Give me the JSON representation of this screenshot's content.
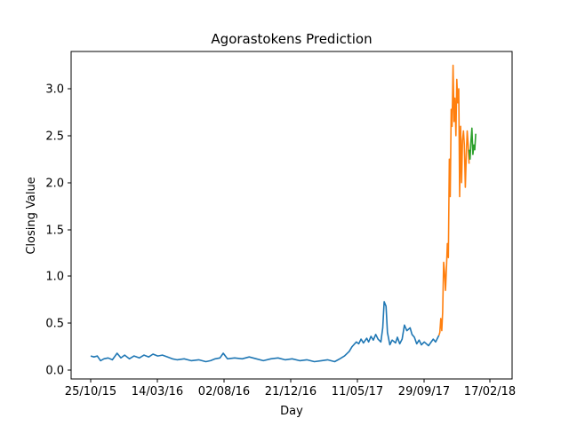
{
  "chart_data": {
    "type": "line",
    "title": "Agorastokens Prediction",
    "xlabel": "Day",
    "ylabel": "Closing Value",
    "x_ticks": [
      "25/10/15",
      "14/03/16",
      "02/08/16",
      "21/12/16",
      "11/05/17",
      "29/09/17",
      "17/02/18"
    ],
    "y_ticks": [
      "0.0",
      "0.5",
      "1.0",
      "1.5",
      "2.0",
      "2.5",
      "3.0"
    ],
    "xlim": [
      "2015-09-21",
      "2018-03-28"
    ],
    "ylim": [
      -0.08,
      3.38
    ],
    "grid": false,
    "legend": "none",
    "colors": {
      "series_1": "#1f77b4",
      "series_2": "#ff7f0e",
      "series_3": "#2ca02c"
    },
    "series": [
      {
        "color": "#1f77b4",
        "points": [
          [
            "2015-10-25",
            0.15
          ],
          [
            "2015-11-01",
            0.14
          ],
          [
            "2015-11-08",
            0.15
          ],
          [
            "2015-11-15",
            0.1
          ],
          [
            "2015-11-22",
            0.12
          ],
          [
            "2015-12-01",
            0.13
          ],
          [
            "2015-12-10",
            0.11
          ],
          [
            "2015-12-20",
            0.18
          ],
          [
            "2015-12-28",
            0.13
          ],
          [
            "2016-01-05",
            0.16
          ],
          [
            "2016-01-15",
            0.12
          ],
          [
            "2016-01-25",
            0.15
          ],
          [
            "2016-02-05",
            0.13
          ],
          [
            "2016-02-15",
            0.16
          ],
          [
            "2016-02-25",
            0.14
          ],
          [
            "2016-03-05",
            0.17
          ],
          [
            "2016-03-15",
            0.15
          ],
          [
            "2016-03-25",
            0.16
          ],
          [
            "2016-04-05",
            0.14
          ],
          [
            "2016-04-15",
            0.12
          ],
          [
            "2016-04-25",
            0.11
          ],
          [
            "2016-05-10",
            0.12
          ],
          [
            "2016-05-25",
            0.1
          ],
          [
            "2016-06-10",
            0.11
          ],
          [
            "2016-06-25",
            0.09
          ],
          [
            "2016-07-05",
            0.1
          ],
          [
            "2016-07-15",
            0.12
          ],
          [
            "2016-07-25",
            0.13
          ],
          [
            "2016-08-01",
            0.18
          ],
          [
            "2016-08-10",
            0.12
          ],
          [
            "2016-08-25",
            0.13
          ],
          [
            "2016-09-10",
            0.12
          ],
          [
            "2016-09-25",
            0.14
          ],
          [
            "2016-10-10",
            0.12
          ],
          [
            "2016-10-25",
            0.1
          ],
          [
            "2016-11-10",
            0.12
          ],
          [
            "2016-11-25",
            0.13
          ],
          [
            "2016-12-10",
            0.11
          ],
          [
            "2016-12-25",
            0.12
          ],
          [
            "2017-01-10",
            0.1
          ],
          [
            "2017-01-25",
            0.11
          ],
          [
            "2017-02-10",
            0.09
          ],
          [
            "2017-02-25",
            0.1
          ],
          [
            "2017-03-10",
            0.11
          ],
          [
            "2017-03-25",
            0.09
          ],
          [
            "2017-04-05",
            0.12
          ],
          [
            "2017-04-15",
            0.15
          ],
          [
            "2017-04-25",
            0.2
          ],
          [
            "2017-05-01",
            0.25
          ],
          [
            "2017-05-10",
            0.3
          ],
          [
            "2017-05-15",
            0.28
          ],
          [
            "2017-05-20",
            0.33
          ],
          [
            "2017-05-25",
            0.29
          ],
          [
            "2017-06-01",
            0.34
          ],
          [
            "2017-06-05",
            0.3
          ],
          [
            "2017-06-10",
            0.36
          ],
          [
            "2017-06-15",
            0.32
          ],
          [
            "2017-06-20",
            0.38
          ],
          [
            "2017-06-25",
            0.33
          ],
          [
            "2017-07-01",
            0.3
          ],
          [
            "2017-07-05",
            0.45
          ],
          [
            "2017-07-08",
            0.73
          ],
          [
            "2017-07-12",
            0.68
          ],
          [
            "2017-07-15",
            0.4
          ],
          [
            "2017-07-20",
            0.27
          ],
          [
            "2017-07-25",
            0.32
          ],
          [
            "2017-08-01",
            0.29
          ],
          [
            "2017-08-05",
            0.35
          ],
          [
            "2017-08-10",
            0.28
          ],
          [
            "2017-08-15",
            0.33
          ],
          [
            "2017-08-20",
            0.48
          ],
          [
            "2017-08-25",
            0.42
          ],
          [
            "2017-09-01",
            0.45
          ],
          [
            "2017-09-05",
            0.38
          ],
          [
            "2017-09-10",
            0.35
          ],
          [
            "2017-09-15",
            0.28
          ],
          [
            "2017-09-20",
            0.32
          ],
          [
            "2017-09-25",
            0.27
          ],
          [
            "2017-10-01",
            0.3
          ],
          [
            "2017-10-10",
            0.26
          ],
          [
            "2017-10-20",
            0.33
          ],
          [
            "2017-10-25",
            0.3
          ],
          [
            "2017-10-30",
            0.35
          ],
          [
            "2017-11-01",
            0.37
          ]
        ]
      },
      {
        "color": "#ff7f0e",
        "points": [
          [
            "2017-11-01",
            0.37
          ],
          [
            "2017-11-03",
            0.4
          ],
          [
            "2017-11-05",
            0.55
          ],
          [
            "2017-11-07",
            0.42
          ],
          [
            "2017-11-09",
            0.62
          ],
          [
            "2017-11-11",
            1.15
          ],
          [
            "2017-11-13",
            1.05
          ],
          [
            "2017-11-15",
            0.85
          ],
          [
            "2017-11-17",
            1.1
          ],
          [
            "2017-11-19",
            1.35
          ],
          [
            "2017-11-21",
            1.2
          ],
          [
            "2017-11-23",
            2.25
          ],
          [
            "2017-11-25",
            1.85
          ],
          [
            "2017-11-27",
            2.78
          ],
          [
            "2017-11-29",
            2.6
          ],
          [
            "2017-12-01",
            3.25
          ],
          [
            "2017-12-03",
            2.65
          ],
          [
            "2017-12-05",
            2.9
          ],
          [
            "2017-12-07",
            2.5
          ],
          [
            "2017-12-09",
            3.1
          ],
          [
            "2017-12-11",
            2.85
          ],
          [
            "2017-12-13",
            3.0
          ],
          [
            "2017-12-15",
            1.85
          ],
          [
            "2017-12-17",
            2.6
          ],
          [
            "2017-12-19",
            2.0
          ],
          [
            "2017-12-21",
            2.45
          ],
          [
            "2017-12-23",
            2.55
          ],
          [
            "2017-12-25",
            2.4
          ],
          [
            "2017-12-27",
            1.95
          ],
          [
            "2017-12-29",
            2.3
          ],
          [
            "2017-12-31",
            2.55
          ],
          [
            "2018-01-02",
            2.4
          ],
          [
            "2018-01-04",
            2.2
          ]
        ]
      },
      {
        "color": "#2ca02c",
        "points": [
          [
            "2018-01-04",
            2.35
          ],
          [
            "2018-01-06",
            2.25
          ],
          [
            "2018-01-08",
            2.45
          ],
          [
            "2018-01-10",
            2.58
          ],
          [
            "2018-01-12",
            2.3
          ],
          [
            "2018-01-14",
            2.4
          ],
          [
            "2018-01-16",
            2.35
          ],
          [
            "2018-01-18",
            2.52
          ]
        ]
      }
    ]
  }
}
